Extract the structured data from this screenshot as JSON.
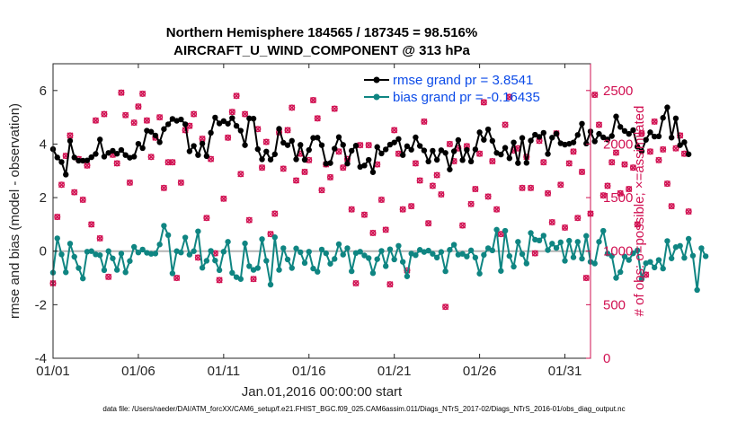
{
  "chart_data": {
    "type": "line",
    "title": "Northern Hemisphere 184565 / 187345 = 98.516%",
    "subtitle": "AIRCRAFT_U_WIND_COMPONENT @ 313 hPa",
    "xlabel": "Jan.01,2016 00:00:00 start",
    "ylabel": "rmse and bias (model - observation)",
    "y2label": "# of obs: o=possible; ×=assimilated",
    "footer": "data file: /Users/raeder/DAI/ATM_forcXX/CAM6_setup/f.e21.FHIST_BGC.f09_025.CAM6assim.011/Diags_NTrS_2017-02/Diags_NTrS_2016-01/obs_diag_output.nc",
    "xlim": [
      0,
      31.5
    ],
    "ylim": [
      -4,
      7
    ],
    "y2lim": [
      0,
      2750
    ],
    "x_ticks": [
      0,
      5,
      10,
      15,
      20,
      25,
      30
    ],
    "x_tick_labels": [
      "01/01",
      "01/06",
      "01/11",
      "01/16",
      "01/21",
      "01/26",
      "01/31"
    ],
    "y_ticks": [
      -4,
      -2,
      0,
      2,
      4,
      6
    ],
    "y_tick_labels": [
      "-4",
      "-2",
      "0",
      "2",
      "4",
      "6"
    ],
    "y2_ticks": [
      0,
      500,
      1000,
      1500,
      2000,
      2500
    ],
    "y2_tick_labels": [
      "0",
      "500",
      "1000",
      "1500",
      "2000",
      "2500"
    ],
    "zero_line": 0,
    "time_step_days": 0.25,
    "colors": {
      "rmse": "#000000",
      "bias": "#0f8582",
      "obs": "#d11152",
      "legend_text": "#0c4be8",
      "zero_line": "#b4b4b4"
    },
    "legend": [
      {
        "label": "rmse grand pr = 3.8541",
        "color": "#000000"
      },
      {
        "label": "bias grand pr = -0.16435",
        "color": "#0f8582"
      }
    ],
    "series": [
      {
        "name": "rmse",
        "axis": "left",
        "values": [
          3.81,
          3.5,
          3.33,
          2.86,
          4.12,
          3.5,
          3.38,
          3.38,
          3.39,
          3.51,
          3.63,
          4.17,
          3.53,
          3.67,
          3.75,
          3.64,
          3.78,
          3.59,
          3.49,
          3.53,
          4.01,
          3.85,
          4.5,
          4.46,
          4.32,
          4.07,
          4.56,
          4.74,
          4.94,
          4.87,
          4.92,
          4.74,
          3.73,
          3.93,
          3.59,
          4.02,
          3.55,
          4.42,
          4.99,
          4.77,
          4.86,
          4.76,
          4.97,
          4.68,
          4.5,
          3.96,
          4.96,
          4.95,
          3.81,
          3.43,
          3.72,
          3.42,
          3.62,
          4.57,
          4.05,
          3.96,
          4.12,
          3.43,
          3.97,
          3.41,
          3.78,
          4.23,
          4.24,
          3.96,
          3.27,
          3.29,
          3.83,
          4.26,
          3.97,
          3.27,
          3.75,
          3.94,
          3.15,
          3.2,
          3.41,
          2.95,
          3.89,
          3.65,
          3.8,
          3.98,
          4.06,
          4.19,
          3.59,
          3.92,
          3.79,
          4.25,
          3.93,
          3.76,
          3.35,
          3.75,
          3.41,
          3.77,
          3.67,
          3.05,
          3.73,
          4.15,
          3.4,
          3.78,
          3.35,
          3.8,
          4.44,
          4.16,
          4.55,
          4.12,
          3.67,
          3.61,
          3.86,
          3.47,
          4.06,
          3.29,
          4.23,
          3.3,
          4.13,
          4.35,
          4.27,
          4.42,
          3.63,
          4.24,
          4.39,
          4.03,
          3.98,
          4.01,
          4.06,
          4.34,
          4.76,
          4.02,
          4.47,
          4.1,
          4.38,
          4.25,
          4.17,
          4.3,
          5.03,
          4.64,
          4.49,
          4.38,
          4.52,
          3.9,
          3.73,
          4.16,
          4.44,
          4.28,
          4.29,
          4.98,
          5.37,
          4.24,
          4.96,
          3.96,
          4.07,
          3.62
        ]
      },
      {
        "name": "bias",
        "axis": "left",
        "values": [
          -0.8,
          0.48,
          -0.12,
          -0.79,
          0.28,
          -0.21,
          -0.63,
          -1.02,
          -0.02,
          0.0,
          -0.12,
          -0.15,
          -0.71,
          0.0,
          -0.27,
          -0.7,
          -0.09,
          -0.79,
          -0.37,
          0.16,
          -0.05,
          0.06,
          -0.06,
          -0.1,
          -0.09,
          0.25,
          0.95,
          0.6,
          -0.83,
          0.0,
          -0.05,
          0.51,
          -0.13,
          0.0,
          0.74,
          -0.62,
          -0.36,
          0.01,
          -0.35,
          -0.71,
          -0.02,
          0.35,
          -0.81,
          -0.97,
          -1.04,
          0.29,
          -0.56,
          -0.7,
          -0.63,
          0.45,
          -0.36,
          -1.25,
          0.52,
          -0.7,
          0.11,
          -0.31,
          -0.63,
          0.1,
          -0.04,
          -0.44,
          -0.02,
          -0.65,
          -0.77,
          0.06,
          -0.08,
          -0.47,
          -0.29,
          0.26,
          -0.13,
          0.11,
          -0.75,
          -0.07,
          -0.02,
          -0.16,
          -0.26,
          -0.82,
          -0.3,
          0.01,
          -0.56,
          0.07,
          -0.31,
          0.2,
          -0.4,
          -0.94,
          -0.09,
          -0.15,
          0.05,
          -0.03,
          0.02,
          -0.1,
          -0.24,
          -0.03,
          -0.75,
          0.05,
          0.24,
          -0.13,
          -0.1,
          -0.2,
          0.03,
          -0.24,
          -0.84,
          -0.14,
          0.11,
          0.03,
          0.8,
          -0.74,
          0.76,
          -0.18,
          -0.58,
          0.35,
          -0.11,
          -0.46,
          0.68,
          0.43,
          0.4,
          0.58,
          0.04,
          0.28,
          0.12,
          0.33,
          -0.36,
          0.39,
          -0.23,
          0.35,
          -0.28,
          0.57,
          -0.4,
          -0.46,
          0.35,
          0.76,
          -0.09,
          -0.18,
          -1.0,
          -0.78,
          -0.2,
          -0.33,
          -0.08,
          0.03,
          -1.04,
          -0.45,
          -0.4,
          -0.61,
          -0.33,
          -0.65,
          0.38,
          -0.27,
          0.15,
          0.2,
          -0.25,
          0.46,
          -0.17,
          -1.45,
          0.11,
          -0.19
        ]
      },
      {
        "name": "obs_possible",
        "axis": "right",
        "values": [
          700,
          1320,
          1620,
          1890,
          2080,
          1550,
          1860,
          1480,
          1800,
          1250,
          2220,
          1120,
          2280,
          760,
          1900,
          1820,
          2480,
          2270,
          1640,
          2200,
          2350,
          2470,
          2220,
          1880,
          2060,
          2250,
          1590,
          1830,
          1830,
          750,
          1640,
          2130,
          2170,
          2280,
          940,
          2050,
          1310,
          1860,
          980,
          730,
          1490,
          2060,
          2300,
          2450,
          1720,
          2280,
          1290,
          740,
          2140,
          1780,
          2020,
          1160,
          1350,
          2110,
          1770,
          2130,
          2340,
          1660,
          1910,
          1740,
          1850,
          2410,
          2240,
          1570,
          1810,
          1690,
          2330,
          1930,
          1780,
          1860,
          1390,
          700,
          1990,
          1340,
          1990,
          1170,
          1810,
          1480,
          1200,
          690,
          2130,
          1910,
          1390,
          820,
          1420,
          1820,
          1660,
          2210,
          1260,
          1610,
          1710,
          1530,
          480,
          2000,
          1840,
          1960,
          1240,
          1980,
          1440,
          1580,
          1910,
          2390,
          1510,
          1840,
          1390,
          1160,
          2180,
          2440,
          1940,
          1960,
          1590,
          1880,
          1590,
          980,
          2030,
          1830,
          1540,
          1270,
          2100,
          1620,
          1220,
          1820,
          1930,
          1310,
          1740,
          750,
          1350,
          2460,
          2180,
          1520,
          1610,
          1830,
          1920,
          1540,
          1810,
          1580,
          1780,
          1250,
          2100,
          780,
          1930,
          2210,
          1850,
          1950,
          1630,
          1420,
          1960,
          2080,
          1910,
          1370
        ]
      },
      {
        "name": "obs_assimilated",
        "axis": "right",
        "values": [
          700,
          1320,
          1620,
          1890,
          2080,
          1550,
          1860,
          1480,
          1800,
          1250,
          2220,
          1120,
          2280,
          760,
          1900,
          1820,
          2480,
          2270,
          1640,
          2200,
          2350,
          2470,
          2220,
          1880,
          2060,
          2250,
          1590,
          1830,
          1830,
          750,
          1640,
          2130,
          2170,
          2280,
          940,
          2050,
          1310,
          1860,
          980,
          730,
          1490,
          2060,
          2300,
          2450,
          1720,
          2280,
          1290,
          740,
          2140,
          1780,
          2020,
          1160,
          1350,
          2110,
          1770,
          2130,
          2340,
          1660,
          1910,
          1740,
          1850,
          2410,
          2240,
          1570,
          1810,
          1690,
          2330,
          1930,
          1780,
          1860,
          1390,
          700,
          1990,
          1340,
          1990,
          1170,
          1810,
          1480,
          1200,
          690,
          2130,
          1910,
          1390,
          820,
          1420,
          1820,
          1660,
          2210,
          1260,
          1610,
          1710,
          1530,
          480,
          2000,
          1840,
          1960,
          1240,
          1980,
          1440,
          1580,
          1910,
          2390,
          1510,
          1840,
          1390,
          1160,
          2180,
          2440,
          1940,
          1960,
          1590,
          1880,
          1590,
          980,
          2030,
          1830,
          1540,
          1270,
          2100,
          1620,
          1220,
          1820,
          1930,
          1310,
          1740,
          750,
          1350,
          2460,
          2180,
          1520,
          1610,
          1830,
          1920,
          1540,
          1810,
          1580,
          1780,
          1250,
          2100,
          780,
          1930,
          2210,
          1850,
          1950,
          1630,
          1420,
          1960,
          2080,
          1910,
          1370
        ]
      }
    ]
  }
}
